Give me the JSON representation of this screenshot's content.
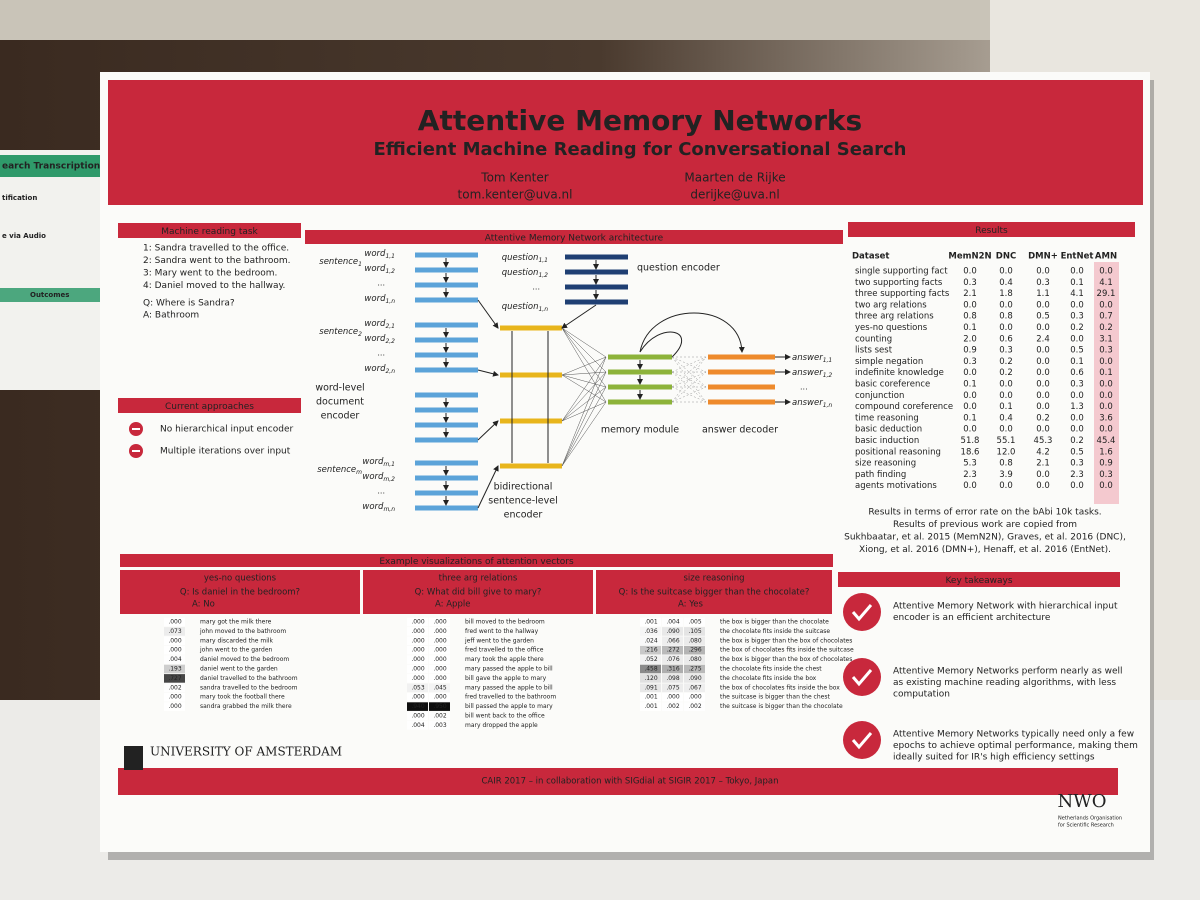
{
  "background_poster": {
    "title": "earch Transcription Pro",
    "sections": [
      "tification",
      "e via Audio",
      "Outcomes"
    ]
  },
  "header": {
    "title": "Attentive Memory Networks",
    "subtitle": "Efficient Machine Reading for Conversational Search",
    "authors": [
      {
        "name": "Tom Kenter",
        "email": "tom.kenter@uva.nl"
      },
      {
        "name": "Maarten de Rijke",
        "email": "derijke@uva.nl"
      }
    ]
  },
  "task": {
    "title": "Machine reading task",
    "story": [
      "1: Sandra travelled to the office.",
      "2: Sandra went to the bathroom.",
      "3: Mary went to the bedroom.",
      "4: Daniel moved to the hallway."
    ],
    "question": "Q: Where is Sandra?",
    "answer": "A: Bathroom"
  },
  "approaches": {
    "title": "Current approaches",
    "items": [
      "No hierarchical input encoder",
      "Multiple iterations over input"
    ]
  },
  "diagram": {
    "title": "Attentive Memory Network architecture",
    "ellipsis": "...",
    "sentences": [
      {
        "base": "sentence",
        "sub": "1"
      },
      {
        "base": "sentence",
        "sub": "2"
      },
      {
        "base": "sentence",
        "sub": "m"
      }
    ],
    "words": [
      [
        {
          "base": "word",
          "sub": "1,1"
        },
        {
          "base": "word",
          "sub": "1,2"
        },
        {
          "base": "word",
          "sub": "1,n"
        }
      ],
      [
        {
          "base": "word",
          "sub": "2,1"
        },
        {
          "base": "word",
          "sub": "2,2"
        },
        {
          "base": "word",
          "sub": "2,n"
        }
      ],
      [
        {
          "base": "word",
          "sub": "m,1"
        },
        {
          "base": "word",
          "sub": "m,2"
        },
        {
          "base": "word",
          "sub": "m,n"
        }
      ]
    ],
    "questions": [
      {
        "base": "question",
        "sub": "1,1"
      },
      {
        "base": "question",
        "sub": "1,2"
      },
      {
        "base": "question",
        "sub": "1,n"
      }
    ],
    "answers": [
      {
        "base": "answer",
        "sub": "1,1"
      },
      {
        "base": "answer",
        "sub": "1,2"
      },
      {
        "base": "answer",
        "sub": "1,n"
      }
    ],
    "word_encoder": [
      "word-level",
      "document",
      "encoder"
    ],
    "sentence_encoder": [
      "bidirectional",
      "sentence-level",
      "encoder"
    ],
    "question_encoder": "question encoder",
    "memory_module": "memory module",
    "answer_decoder": "answer decoder"
  },
  "results": {
    "title": "Results",
    "table": {
      "header": [
        "Dataset",
        "MemN2N",
        "DNC",
        "DMN+",
        "EntNet",
        "AMN"
      ],
      "rows": [
        [
          "single supporting fact",
          "0.0",
          "0.0",
          "0.0",
          "0.0",
          "0.0"
        ],
        [
          "two supporting facts",
          "0.3",
          "0.4",
          "0.3",
          "0.1",
          "4.1"
        ],
        [
          "three supporting facts",
          "2.1",
          "1.8",
          "1.1",
          "4.1",
          "29.1"
        ],
        [
          "two arg relations",
          "0.0",
          "0.0",
          "0.0",
          "0.0",
          "0.0"
        ],
        [
          "three arg relations",
          "0.8",
          "0.8",
          "0.5",
          "0.3",
          "0.7"
        ],
        [
          "yes-no questions",
          "0.1",
          "0.0",
          "0.0",
          "0.2",
          "0.2"
        ],
        [
          "counting",
          "2.0",
          "0.6",
          "2.4",
          "0.0",
          "3.1"
        ],
        [
          "lists sest",
          "0.9",
          "0.3",
          "0.0",
          "0.5",
          "0.3"
        ],
        [
          "simple negation",
          "0.3",
          "0.2",
          "0.0",
          "0.1",
          "0.0"
        ],
        [
          "indefinite knowledge",
          "0.0",
          "0.2",
          "0.0",
          "0.6",
          "0.1"
        ],
        [
          "basic coreference",
          "0.1",
          "0.0",
          "0.0",
          "0.3",
          "0.0"
        ],
        [
          "conjunction",
          "0.0",
          "0.0",
          "0.0",
          "0.0",
          "0.0"
        ],
        [
          "compound coreference",
          "0.0",
          "0.1",
          "0.0",
          "1.3",
          "0.0"
        ],
        [
          "time reasoning",
          "0.1",
          "0.4",
          "0.2",
          "0.0",
          "3.6"
        ],
        [
          "basic deduction",
          "0.0",
          "0.0",
          "0.0",
          "0.0",
          "0.0"
        ],
        [
          "basic induction",
          "51.8",
          "55.1",
          "45.3",
          "0.2",
          "45.4"
        ],
        [
          "positional reasoning",
          "18.6",
          "12.0",
          "4.2",
          "0.5",
          "1.6"
        ],
        [
          "size reasoning",
          "5.3",
          "0.8",
          "2.1",
          "0.3",
          "0.9"
        ],
        [
          "path finding",
          "2.3",
          "3.9",
          "0.0",
          "2.3",
          "0.3"
        ],
        [
          "agents motivations",
          "0.0",
          "0.0",
          "0.0",
          "0.0",
          "0.0"
        ]
      ]
    },
    "caption": [
      "Results in terms of error rate on the bAbi 10k tasks.",
      "Results of previous work are copied from",
      "Sukhbaatar, et al. 2015 (MemN2N), Graves, et al. 2016 (DNC),",
      "Xiong, et al. 2016 (DMN+), Henaff, et al. 2016 (EntNet)."
    ]
  },
  "examples": {
    "title": "Example visualizations of attention vectors",
    "panels": [
      {
        "title": "yes-no questions",
        "question": "Q: Is daniel in the bedroom?",
        "answer": "A: No",
        "rows": [
          {
            "weights": [
              ".000"
            ],
            "text": "mary got the milk there"
          },
          {
            "weights": [
              ".073"
            ],
            "text": "john moved to the bathroom"
          },
          {
            "weights": [
              ".000"
            ],
            "text": "mary discarded the milk"
          },
          {
            "weights": [
              ".000"
            ],
            "text": "john went to the garden"
          },
          {
            "weights": [
              ".004"
            ],
            "text": "daniel moved to the bedroom"
          },
          {
            "weights": [
              ".193"
            ],
            "text": "daniel went to the garden"
          },
          {
            "weights": [
              ".727"
            ],
            "text": "daniel travelled to the bathroom"
          },
          {
            "weights": [
              ".002"
            ],
            "text": "sandra travelled to the bedroom"
          },
          {
            "weights": [
              ".000"
            ],
            "text": "mary took the football there"
          },
          {
            "weights": [
              ".000"
            ],
            "text": "sandra grabbed the milk there"
          }
        ]
      },
      {
        "title": "three arg relations",
        "question": "Q: What did bill give to mary?",
        "answer": "A: Apple",
        "rows": [
          {
            "weights": [
              ".000",
              ".000"
            ],
            "text": "bill moved to the bedroom"
          },
          {
            "weights": [
              ".000",
              ".000"
            ],
            "text": "fred went to the hallway"
          },
          {
            "weights": [
              ".000",
              ".000"
            ],
            "text": "jeff went to the garden"
          },
          {
            "weights": [
              ".000",
              ".000"
            ],
            "text": "fred travelled to the office"
          },
          {
            "weights": [
              ".000",
              ".000"
            ],
            "text": "mary took the apple there"
          },
          {
            "weights": [
              ".000",
              ".000"
            ],
            "text": "mary passed the apple to bill"
          },
          {
            "weights": [
              ".000",
              ".000"
            ],
            "text": "bill gave the apple to mary"
          },
          {
            "weights": [
              ".053",
              ".045"
            ],
            "text": "mary passed the apple to bill"
          },
          {
            "weights": [
              ".000",
              ".000"
            ],
            "text": "fred travelled to the bathroom"
          },
          {
            "weights": [
              ".940",
              ".950"
            ],
            "text": "bill passed the apple to mary"
          },
          {
            "weights": [
              ".000",
              ".002"
            ],
            "text": "bill went back to the office"
          },
          {
            "weights": [
              ".004",
              ".003"
            ],
            "text": "mary dropped the apple"
          }
        ]
      },
      {
        "title": "size reasoning",
        "question": "Q: Is the suitcase bigger than the chocolate?",
        "answer": "A: Yes",
        "rows": [
          {
            "weights": [
              ".001",
              ".004",
              ".005"
            ],
            "text": "the box is bigger than the chocolate"
          },
          {
            "weights": [
              ".036",
              ".090",
              ".105"
            ],
            "text": "the chocolate fits inside the suitcase"
          },
          {
            "weights": [
              ".024",
              ".066",
              ".080"
            ],
            "text": "the box is bigger than the box of chocolates"
          },
          {
            "weights": [
              ".216",
              ".272",
              ".296"
            ],
            "text": "the box of chocolates fits inside the suitcase"
          },
          {
            "weights": [
              ".052",
              ".076",
              ".080"
            ],
            "text": "the box is bigger than the box of chocolates"
          },
          {
            "weights": [
              ".458",
              ".316",
              ".275"
            ],
            "text": "the chocolate fits inside the chest"
          },
          {
            "weights": [
              ".120",
              ".098",
              ".090"
            ],
            "text": "the chocolate fits inside the box"
          },
          {
            "weights": [
              ".091",
              ".075",
              ".067"
            ],
            "text": "the box of chocolates fits inside the box"
          },
          {
            "weights": [
              ".001",
              ".000",
              ".000"
            ],
            "text": "the suitcase is bigger than the chest"
          },
          {
            "weights": [
              ".001",
              ".002",
              ".002"
            ],
            "text": "the suitcase is bigger than the chocolate"
          }
        ]
      }
    ]
  },
  "takeaways": {
    "title": "Key takeaways",
    "items": [
      [
        "Attentive Memory Network with hierarchical input",
        "encoder is an efficient architecture"
      ],
      [
        "Attentive Memory Networks perform nearly as well",
        "as existing machine reading algorithms, with less",
        "computation"
      ],
      [
        "Attentive Memory Networks typically need only a few",
        "epochs to achieve optimal performance, making them",
        "ideally suited for IR's high efficiency settings"
      ]
    ]
  },
  "footer": {
    "university": "UNIVERSITY OF AMSTERDAM",
    "conference": "CAIR 2017  – in collaboration with SIGdial at SIGIR 2017 – Tokyo, Japan",
    "nwo": "NWO",
    "nwo_name": [
      "Netherlands Organisation",
      "for Scientific Research"
    ]
  }
}
